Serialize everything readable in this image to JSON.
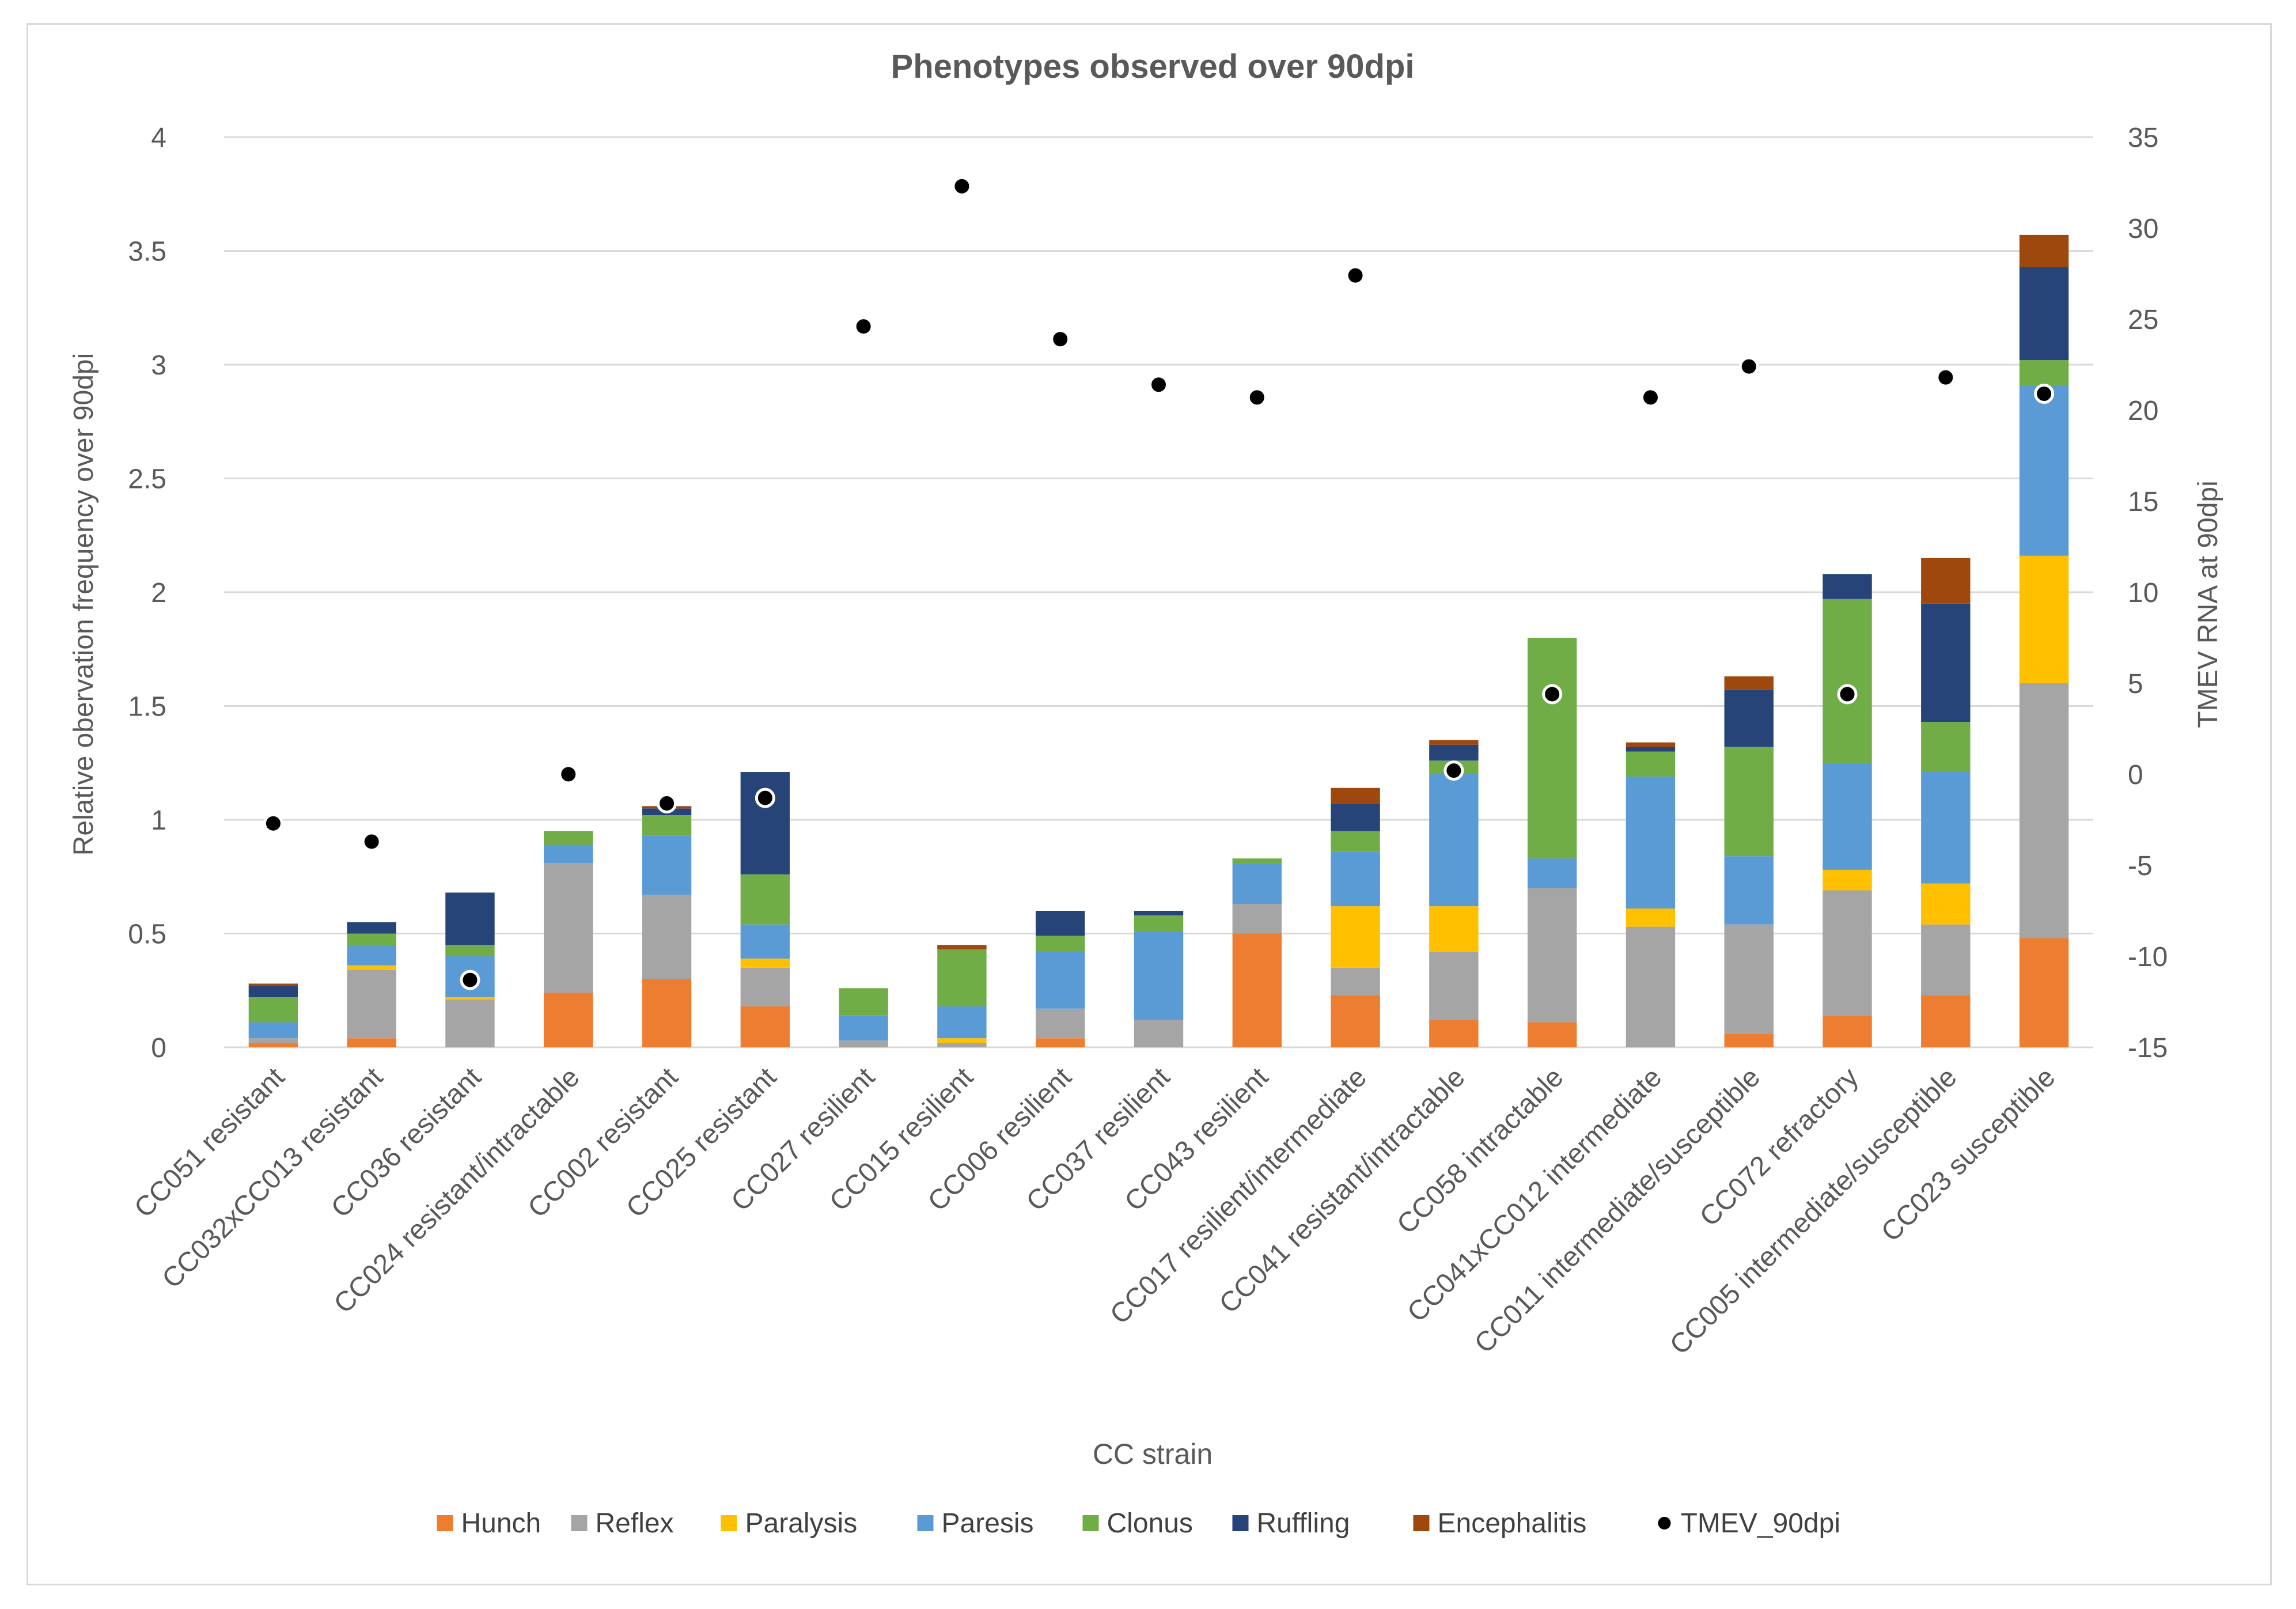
{
  "chart_data": {
    "type": "bar",
    "stacked": true,
    "title": "Phenotypes observed over 90dpi",
    "xlabel": "CC strain",
    "ylabel": "Relative obervation frequency over 90dpi",
    "y2label": "TMEV RNA at 90dpi",
    "ylim": [
      0,
      4
    ],
    "yticks": [
      "0",
      "0.5",
      "1",
      "1.5",
      "2",
      "2.5",
      "3",
      "3.5",
      "4"
    ],
    "y2lim": [
      -15,
      35
    ],
    "y2ticks": [
      "-15",
      "-10",
      "-5",
      "0",
      "5",
      "10",
      "15",
      "20",
      "25",
      "30",
      "35"
    ],
    "grid": true,
    "legend_position": "bottom",
    "categories": [
      "CC051 resistant",
      "CC032xCC013 resistant",
      "CC036 resistant",
      "CC024 resistant/intractable",
      "CC002 resistant",
      "CC025 resistant",
      "CC027 resilient",
      "CC015 resilient",
      "CC006 resilient",
      "CC037 resilient",
      "CC043 resilient",
      "CC017 resilient/intermediate",
      "CC041 resistant/intractable",
      "CC058 intractable",
      "CC041xCC012 intermediate",
      "CC011 intermediate/susceptible",
      "CC072 refractory",
      "CC005 intermediate/susceptible",
      "CC023 susceptible"
    ],
    "series": [
      {
        "name": "Hunch",
        "color": "#ED7D31",
        "values": [
          0.02,
          0.04,
          0,
          0.24,
          0.3,
          0.18,
          0,
          0,
          0.04,
          0,
          0.5,
          0.23,
          0.12,
          0.11,
          0,
          0.06,
          0.14,
          0.23,
          0.48
        ]
      },
      {
        "name": "Reflex",
        "color": "#A5A5A5",
        "values": [
          0.02,
          0.3,
          0.21,
          0.57,
          0.37,
          0.17,
          0.03,
          0.02,
          0.13,
          0.12,
          0.13,
          0.12,
          0.3,
          0.59,
          0.53,
          0.48,
          0.55,
          0.31,
          1.12
        ]
      },
      {
        "name": "Paralysis",
        "color": "#FFC000",
        "values": [
          0,
          0.02,
          0.01,
          0,
          0,
          0.04,
          0,
          0.02,
          0,
          0,
          0,
          0.27,
          0.2,
          0,
          0.08,
          0,
          0.09,
          0.18,
          0.56
        ]
      },
      {
        "name": "Paresis",
        "color": "#5B9BD5",
        "values": [
          0.07,
          0.09,
          0.18,
          0.08,
          0.26,
          0.15,
          0.11,
          0.14,
          0.25,
          0.39,
          0.18,
          0.24,
          0.58,
          0.13,
          0.58,
          0.3,
          0.47,
          0.49,
          0.75
        ]
      },
      {
        "name": "Clonus",
        "color": "#70AD47",
        "values": [
          0.11,
          0.05,
          0.05,
          0.06,
          0.09,
          0.22,
          0.12,
          0.25,
          0.07,
          0.07,
          0.02,
          0.09,
          0.06,
          0.97,
          0.11,
          0.48,
          0.72,
          0.22,
          0.11
        ]
      },
      {
        "name": "Ruffling",
        "color": "#264478",
        "values": [
          0.05,
          0.05,
          0.23,
          0,
          0.03,
          0.45,
          0,
          0,
          0.11,
          0.02,
          0,
          0.12,
          0.07,
          0,
          0.02,
          0.25,
          0.11,
          0.52,
          0.41
        ]
      },
      {
        "name": "Encephalitis",
        "color": "#9E480E",
        "values": [
          0.01,
          0,
          0,
          0,
          0.01,
          0,
          0,
          0.02,
          0,
          0,
          0,
          0.07,
          0.02,
          0,
          0.02,
          0.06,
          0,
          0.2,
          0.14
        ]
      }
    ],
    "scatter_series": {
      "name": "TMEV_90dpi",
      "axis": "secondary",
      "color": "#000000",
      "values": [
        -2.7,
        -3.7,
        -11.3,
        0,
        -1.6,
        -1.3,
        24.6,
        32.3,
        23.9,
        21.4,
        20.7,
        27.4,
        0.2,
        4.4,
        20.7,
        22.4,
        4.4,
        21.8,
        20.9
      ]
    }
  }
}
